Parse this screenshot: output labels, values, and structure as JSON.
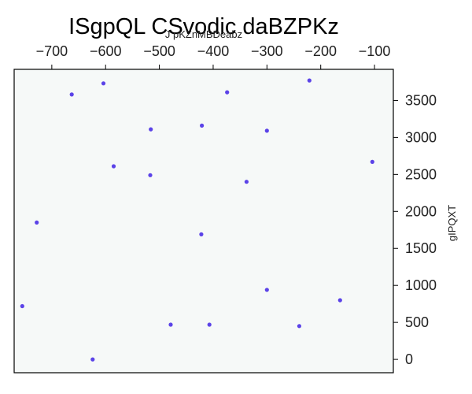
{
  "chart_data": {
    "type": "scatter",
    "title": "ISgpQL CSvodic daBZPKz",
    "xlabel": "J pKZnMBDeabz",
    "ylabel": "gIPQXT",
    "x_axis_position": "top",
    "y_axis_position": "right",
    "xlim": [
      -770,
      -65
    ],
    "ylim": [
      -180,
      3920
    ],
    "x_ticks": [
      -700,
      -600,
      -500,
      -400,
      -300,
      -200,
      -100
    ],
    "x_tick_labels": [
      "−700",
      "−600",
      "−500",
      "−400",
      "−300",
      "−200",
      "−100"
    ],
    "y_ticks": [
      0,
      500,
      1000,
      1500,
      2000,
      2500,
      3000,
      3500
    ],
    "y_tick_labels": [
      "0",
      "500",
      "1000",
      "1500",
      "2000",
      "2500",
      "3000",
      "3500"
    ],
    "grid": false,
    "background_color": "#f6f9f8",
    "point_color": "#5b43e8",
    "x": [
      -663,
      -604,
      -221,
      -374,
      -516,
      -421,
      -300,
      -585,
      -517,
      -338,
      -104,
      -728,
      -422,
      -300,
      -164,
      -755,
      -479,
      -407,
      -240,
      -624
    ],
    "y": [
      3580,
      3730,
      3770,
      3610,
      3110,
      3160,
      3090,
      2610,
      2490,
      2400,
      2670,
      1850,
      1690,
      940,
      800,
      720,
      470,
      470,
      450,
      0
    ]
  }
}
